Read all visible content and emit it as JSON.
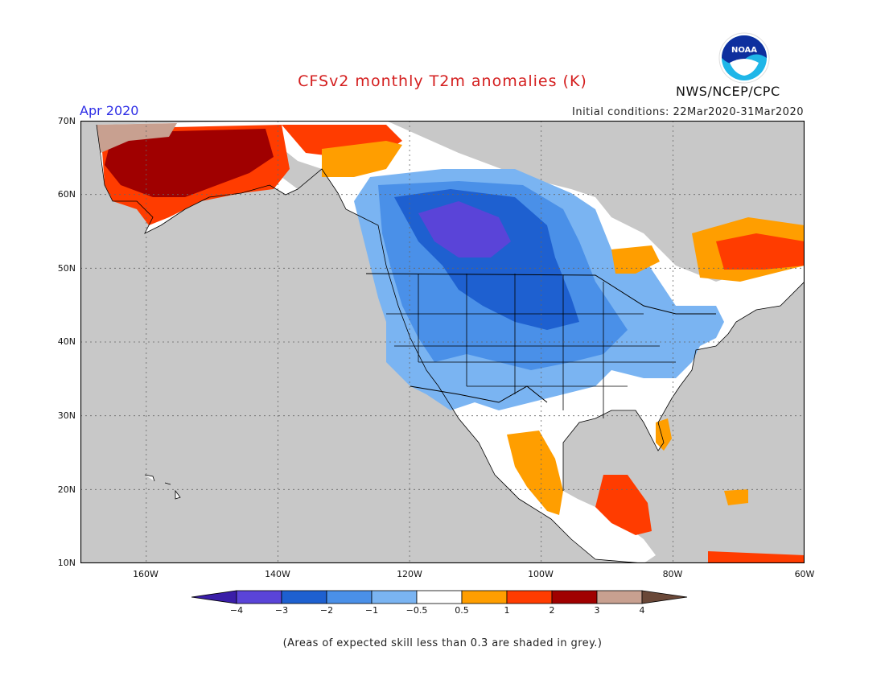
{
  "header": {
    "title": "CFSv2 monthly T2m anomalies (K)",
    "month": "Apr 2020",
    "initial_conditions": "Initial conditions: 22Mar2020-31Mar2020",
    "agency": "NWS/NCEP/CPC",
    "logo_text": "NOAA"
  },
  "map": {
    "lat_labels": [
      "70N",
      "60N",
      "50N",
      "40N",
      "30N",
      "20N",
      "10N"
    ],
    "lon_labels": [
      "160W",
      "140W",
      "120W",
      "100W",
      "80W",
      "60W"
    ],
    "lat_range": [
      10,
      70
    ],
    "lon_range": [
      -170,
      -60
    ],
    "grid": "dotted"
  },
  "colorbar": {
    "tick_labels": [
      "−4",
      "−3",
      "−2",
      "−1",
      "−0.5",
      "0.5",
      "1",
      "2",
      "3",
      "4"
    ],
    "colors": [
      "#3a1ea8",
      "#5a44d8",
      "#1e60d0",
      "#4a90e8",
      "#7ab4f2",
      "#ffffff",
      "#ff9e00",
      "#ff3c00",
      "#a00000",
      "#c8a090",
      "#6a4838"
    ]
  },
  "footer": {
    "note": "(Areas of expected skill less than 0.3 are shaded in grey.)"
  }
}
